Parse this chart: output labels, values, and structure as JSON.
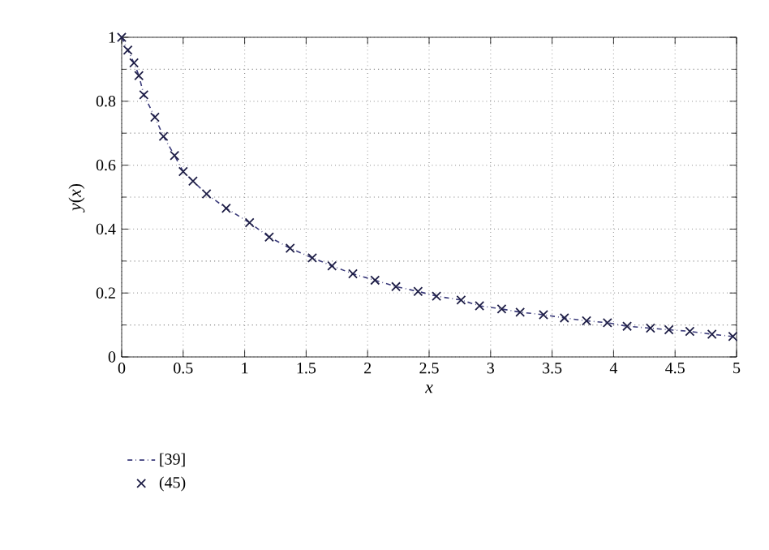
{
  "chart_data": {
    "type": "line",
    "xlabel": "x",
    "ylabel": "*y*(*x*)",
    "xlim": [
      0,
      5
    ],
    "ylim": [
      0,
      1
    ],
    "xticks": [
      0,
      0.5,
      1,
      1.5,
      2,
      2.5,
      3,
      3.5,
      4,
      4.5,
      5
    ],
    "yticks": [
      0,
      0.2,
      0.4,
      0.6,
      0.8,
      1
    ],
    "grid": true,
    "legend": "bottom",
    "series": [
      {
        "name": "[39]",
        "color": "#3a3a7a",
        "line_style": "dashdot",
        "marker": "none",
        "x": [
          0,
          0.05,
          0.1,
          0.14,
          0.18,
          0.27,
          0.34,
          0.43,
          0.5,
          0.58,
          0.69,
          0.85,
          1.04,
          1.2,
          1.37,
          1.55,
          1.71,
          1.88,
          2.06,
          2.23,
          2.41,
          2.56,
          2.76,
          2.91,
          3.09,
          3.24,
          3.43,
          3.6,
          3.78,
          3.95,
          4.11,
          4.3,
          4.45,
          4.62,
          4.8,
          4.97
        ],
        "values": [
          1.0,
          0.96,
          0.92,
          0.88,
          0.82,
          0.75,
          0.69,
          0.63,
          0.58,
          0.55,
          0.51,
          0.465,
          0.42,
          0.375,
          0.34,
          0.31,
          0.285,
          0.26,
          0.24,
          0.22,
          0.205,
          0.19,
          0.178,
          0.16,
          0.15,
          0.14,
          0.132,
          0.122,
          0.113,
          0.107,
          0.096,
          0.09,
          0.085,
          0.08,
          0.071,
          0.064
        ]
      },
      {
        "name": "(45)",
        "type": "scatter",
        "color": "#1e1e46",
        "marker": "cross",
        "x": [
          0,
          0.05,
          0.1,
          0.14,
          0.18,
          0.27,
          0.34,
          0.43,
          0.5,
          0.58,
          0.69,
          0.85,
          1.04,
          1.2,
          1.37,
          1.55,
          1.71,
          1.88,
          2.06,
          2.23,
          2.41,
          2.56,
          2.76,
          2.91,
          3.09,
          3.24,
          3.43,
          3.6,
          3.78,
          3.95,
          4.11,
          4.3,
          4.45,
          4.62,
          4.8,
          4.97
        ],
        "values": [
          1.0,
          0.96,
          0.92,
          0.88,
          0.82,
          0.75,
          0.69,
          0.63,
          0.58,
          0.55,
          0.51,
          0.465,
          0.42,
          0.375,
          0.34,
          0.31,
          0.285,
          0.26,
          0.24,
          0.22,
          0.205,
          0.19,
          0.178,
          0.16,
          0.15,
          0.14,
          0.132,
          0.122,
          0.113,
          0.107,
          0.096,
          0.09,
          0.085,
          0.08,
          0.071,
          0.064
        ]
      }
    ]
  }
}
